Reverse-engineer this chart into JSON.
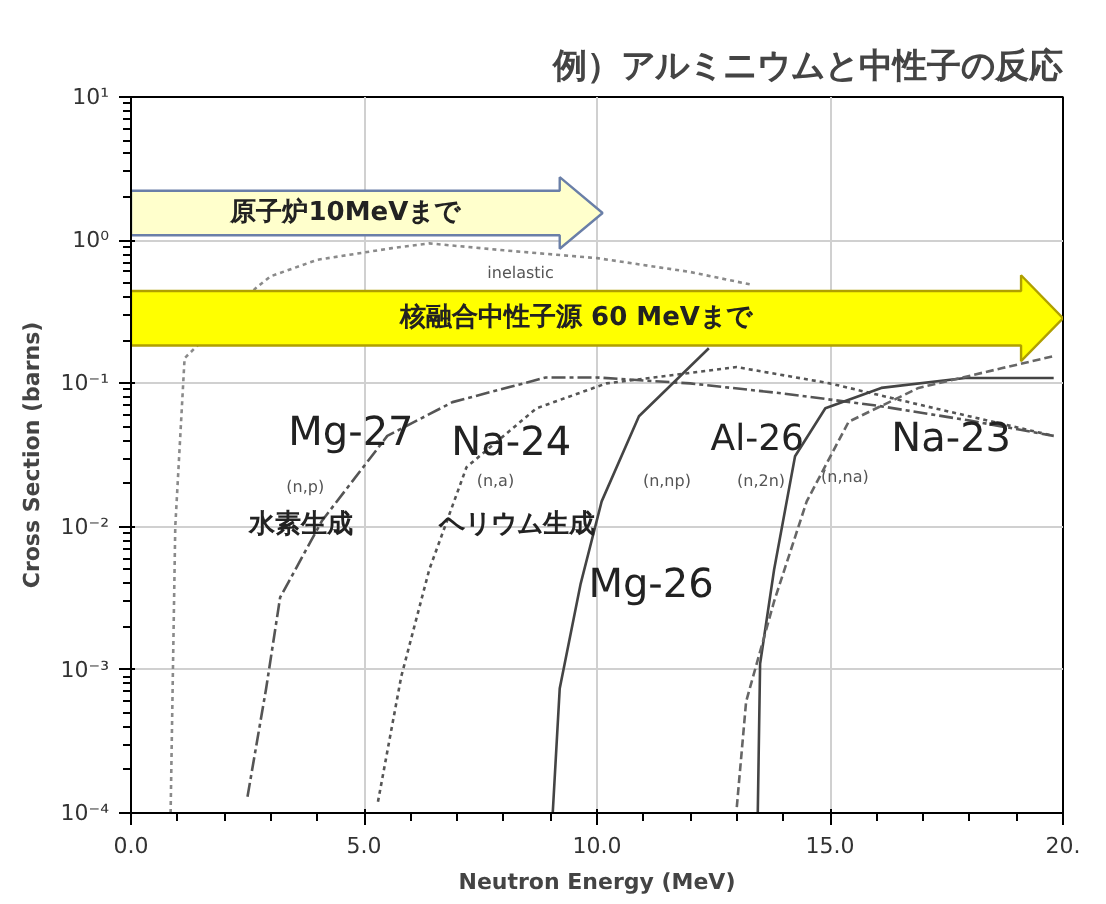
{
  "chart_data": {
    "type": "line",
    "title": "例）アルミニウムと中性子の反応",
    "xlabel": "Neutron Energy (MeV)",
    "ylabel": "Cross Section (barns)",
    "log": "y",
    "grid": true,
    "xlim": [
      0,
      20
    ],
    "xticks": [
      {
        "value": 0,
        "label": "0.0"
      },
      {
        "value": 5,
        "label": "5.0"
      },
      {
        "value": 10,
        "label": "10.0"
      },
      {
        "value": 15,
        "label": "15.0"
      },
      {
        "value": 20,
        "label": "20."
      }
    ],
    "ylim": [
      0.0001,
      10
    ],
    "yticks": [
      {
        "value": 0.0001,
        "label": "10⁻⁴"
      },
      {
        "value": 0.001,
        "label": "10⁻³"
      },
      {
        "value": 0.01,
        "label": "10⁻²"
      },
      {
        "value": 0.1,
        "label": "10⁻¹"
      },
      {
        "value": 1,
        "label": "10⁰"
      },
      {
        "value": 10,
        "label": "10¹"
      }
    ],
    "series": [
      {
        "color": "#8a8a8a",
        "line_style": "dotted",
        "x": [
          0.85,
          0.95,
          1.15,
          2.7,
          3.0,
          4.0,
          5.6,
          6.4,
          8,
          10,
          12,
          13.3
        ],
        "values": [
          0.0001,
          0.01,
          0.15,
          0.47,
          0.56,
          0.73,
          0.88,
          0.95,
          0.85,
          0.75,
          0.6,
          0.49
        ]
      },
      {
        "color": "#555555",
        "line_style": "dashdot",
        "x": [
          2.5,
          2.9,
          3.2,
          4.1,
          5.5,
          6.9,
          8.9,
          10,
          12,
          14,
          16,
          18,
          19.8
        ],
        "values": [
          0.00013,
          0.00074,
          0.0032,
          0.011,
          0.043,
          0.074,
          0.11,
          0.11,
          0.1,
          0.085,
          0.07,
          0.055,
          0.043
        ]
      },
      {
        "color": "#555555",
        "line_style": "dotted",
        "x": [
          5.3,
          5.8,
          6.4,
          7.2,
          8.7,
          10.2,
          13,
          15,
          17,
          19.8
        ],
        "values": [
          0.00012,
          0.0009,
          0.005,
          0.026,
          0.067,
          0.1,
          0.13,
          0.1,
          0.07,
          0.043
        ]
      },
      {
        "color": "#444444",
        "line_style": "solid",
        "x": [
          9.05,
          9.2,
          9.65,
          10.1,
          10.9,
          12.4
        ],
        "values": [
          0.0001,
          0.00074,
          0.004,
          0.015,
          0.059,
          0.176
        ]
      },
      {
        "color": "#444444",
        "line_style": "solid",
        "x": [
          13.45,
          13.5,
          13.8,
          14.25,
          14.9,
          16.1,
          17.9,
          19.8
        ],
        "values": [
          0.0001,
          0.0011,
          0.005,
          0.031,
          0.067,
          0.093,
          0.109,
          0.109
        ]
      },
      {
        "color": "#666666",
        "line_style": "dashed",
        "x": [
          13.0,
          13.2,
          13.8,
          14.5,
          15.4,
          16.9,
          18.7,
          19.8
        ],
        "values": [
          0.00011,
          0.0006,
          0.003,
          0.015,
          0.054,
          0.093,
          0.128,
          0.155
        ]
      }
    ],
    "annotations": [
      "原子炉10MeVまで",
      "核融合中性子源 60 MeVまで",
      "inelastic",
      "Mg-27",
      "(n,p)",
      "Na-24",
      "(n,a)",
      "(n,np)",
      "Mg-26",
      "Al-26",
      "(n,2n)",
      "Na-23",
      "(n,na)",
      "水素生成",
      "ヘリウム生成"
    ]
  }
}
